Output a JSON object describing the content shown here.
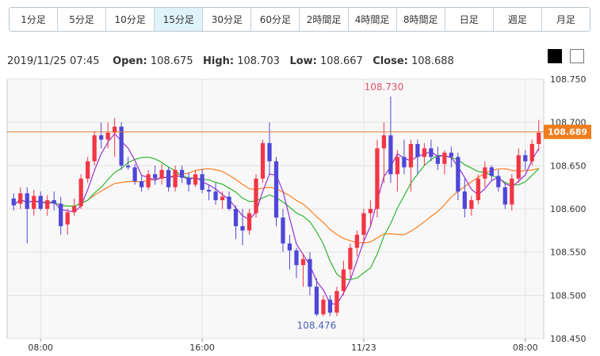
{
  "timeframes": [
    {
      "label": "1分足",
      "active": false
    },
    {
      "label": "5分足",
      "active": false
    },
    {
      "label": "10分足",
      "active": false
    },
    {
      "label": "15分足",
      "active": true
    },
    {
      "label": "30分足",
      "active": false
    },
    {
      "label": "60分足",
      "active": false
    },
    {
      "label": "2時間足",
      "active": false
    },
    {
      "label": "4時間足",
      "active": false
    },
    {
      "label": "8時間足",
      "active": false
    },
    {
      "label": "日足",
      "active": false
    },
    {
      "label": "週足",
      "active": false
    },
    {
      "label": "月足",
      "active": false
    }
  ],
  "ohlc": {
    "datetime": "2019/11/25 07:45",
    "open_label": "Open:",
    "open": "108.675",
    "high_label": "High:",
    "high": "108.703",
    "low_label": "Low:",
    "low": "108.667",
    "close_label": "Close:",
    "close": "108.688"
  },
  "theme_buttons": [
    "black",
    "white"
  ],
  "chart_data": {
    "type": "candlestick",
    "ylim": [
      108.45,
      108.75
    ],
    "y_ticks": [
      108.45,
      108.5,
      108.55,
      108.6,
      108.65,
      108.7,
      108.75
    ],
    "y_tick_labels": [
      "108.450",
      "108.500",
      "108.550",
      "108.600",
      "108.650",
      "108.700",
      "108.750"
    ],
    "x_ticks": [
      {
        "label": "08:00",
        "index": 4
      },
      {
        "label": "16:00",
        "index": 28
      },
      {
        "label": "11/23",
        "index": 52
      },
      {
        "label": "08:00",
        "index": 76
      }
    ],
    "current_price": 108.689,
    "current_price_label": "108.689",
    "annotations": [
      {
        "text": "108.730",
        "value": 108.73,
        "index": 55,
        "position": "above"
      },
      {
        "text": "108.476",
        "value": 108.476,
        "index": 45,
        "position": "below"
      }
    ],
    "colors": {
      "up": "#f23645",
      "down": "#4f47d8",
      "ma_short": "#9a2fd6",
      "ma_mid": "#2eb82e",
      "ma_long": "#ff7d1a",
      "price_line": "#e87b3a",
      "price_tag": "#f07c1c"
    },
    "candles": [
      [
        108.612,
        108.618,
        108.598,
        108.604
      ],
      [
        108.606,
        108.625,
        108.6,
        108.618
      ],
      [
        108.618,
        108.625,
        108.56,
        108.6
      ],
      [
        108.6,
        108.622,
        108.592,
        108.615
      ],
      [
        108.615,
        108.62,
        108.598,
        108.6
      ],
      [
        108.6,
        108.616,
        108.592,
        108.61
      ],
      [
        108.61,
        108.62,
        108.598,
        108.606
      ],
      [
        108.606,
        108.614,
        108.57,
        108.58
      ],
      [
        108.582,
        108.6,
        108.57,
        108.596
      ],
      [
        108.596,
        108.612,
        108.592,
        108.603
      ],
      [
        108.603,
        108.64,
        108.6,
        108.635
      ],
      [
        108.635,
        108.66,
        108.63,
        108.655
      ],
      [
        108.655,
        108.69,
        108.65,
        108.685
      ],
      [
        108.685,
        108.7,
        108.67,
        108.68
      ],
      [
        108.68,
        108.7,
        108.67,
        108.688
      ],
      [
        108.688,
        108.705,
        108.66,
        108.695
      ],
      [
        108.695,
        108.7,
        108.645,
        108.65
      ],
      [
        108.65,
        108.66,
        108.645,
        108.648
      ],
      [
        108.648,
        108.652,
        108.628,
        108.632
      ],
      [
        108.632,
        108.638,
        108.62,
        108.625
      ],
      [
        108.625,
        108.645,
        108.622,
        108.64
      ],
      [
        108.64,
        108.65,
        108.628,
        108.635
      ],
      [
        108.635,
        108.652,
        108.628,
        108.645
      ],
      [
        108.645,
        108.648,
        108.62,
        108.625
      ],
      [
        108.625,
        108.65,
        108.62,
        108.645
      ],
      [
        108.645,
        108.65,
        108.63,
        108.636
      ],
      [
        108.636,
        108.642,
        108.62,
        108.628
      ],
      [
        108.628,
        108.645,
        108.625,
        108.64
      ],
      [
        108.64,
        108.646,
        108.618,
        108.622
      ],
      [
        108.622,
        108.628,
        108.61,
        108.62
      ],
      [
        108.62,
        108.63,
        108.605,
        108.61
      ],
      [
        108.61,
        108.62,
        108.6,
        108.614
      ],
      [
        108.614,
        108.62,
        108.598,
        108.6
      ],
      [
        108.6,
        108.604,
        108.565,
        108.58
      ],
      [
        108.58,
        108.6,
        108.558,
        108.575
      ],
      [
        108.575,
        108.6,
        108.57,
        108.595
      ],
      [
        108.595,
        108.64,
        108.59,
        108.635
      ],
      [
        108.635,
        108.68,
        108.63,
        108.676
      ],
      [
        108.676,
        108.7,
        108.64,
        108.655
      ],
      [
        108.655,
        108.66,
        108.58,
        108.59
      ],
      [
        108.59,
        108.6,
        108.55,
        108.56
      ],
      [
        108.56,
        108.57,
        108.53,
        108.552
      ],
      [
        108.552,
        108.555,
        108.52,
        108.535
      ],
      [
        108.535,
        108.548,
        108.51,
        108.542
      ],
      [
        108.542,
        108.55,
        108.5,
        108.51
      ],
      [
        108.51,
        108.52,
        108.476,
        108.478
      ],
      [
        108.478,
        108.5,
        108.476,
        108.495
      ],
      [
        108.495,
        108.5,
        108.476,
        108.48
      ],
      [
        108.48,
        108.51,
        108.476,
        108.505
      ],
      [
        108.505,
        108.54,
        108.5,
        108.53
      ],
      [
        108.53,
        108.56,
        108.52,
        108.555
      ],
      [
        108.555,
        108.575,
        108.545,
        108.57
      ],
      [
        108.57,
        108.6,
        108.56,
        108.595
      ],
      [
        108.595,
        108.61,
        108.58,
        108.6
      ],
      [
        108.6,
        108.68,
        108.59,
        108.67
      ],
      [
        108.67,
        108.7,
        108.63,
        108.685
      ],
      [
        108.685,
        108.73,
        108.63,
        108.64
      ],
      [
        108.64,
        108.668,
        108.62,
        108.66
      ],
      [
        108.66,
        108.68,
        108.64,
        108.648
      ],
      [
        108.648,
        108.68,
        108.62,
        108.675
      ],
      [
        108.675,
        108.68,
        108.64,
        108.66
      ],
      [
        108.66,
        108.676,
        108.65,
        108.67
      ],
      [
        108.67,
        108.68,
        108.655,
        108.66
      ],
      [
        108.66,
        108.672,
        108.645,
        108.652
      ],
      [
        108.652,
        108.668,
        108.64,
        108.665
      ],
      [
        108.665,
        108.672,
        108.648,
        108.66
      ],
      [
        108.66,
        108.665,
        108.61,
        108.62
      ],
      [
        108.62,
        108.635,
        108.59,
        108.6
      ],
      [
        108.6,
        108.615,
        108.592,
        108.61
      ],
      [
        108.61,
        108.64,
        108.605,
        108.635
      ],
      [
        108.635,
        108.655,
        108.625,
        108.648
      ],
      [
        108.648,
        108.65,
        108.632,
        108.638
      ],
      [
        108.638,
        108.645,
        108.62,
        108.625
      ],
      [
        108.625,
        108.63,
        108.6,
        108.605
      ],
      [
        108.605,
        108.64,
        108.598,
        108.635
      ],
      [
        108.635,
        108.67,
        108.63,
        108.662
      ],
      [
        108.662,
        108.668,
        108.645,
        108.655
      ],
      [
        108.655,
        108.68,
        108.65,
        108.675
      ],
      [
        108.675,
        108.703,
        108.667,
        108.688
      ]
    ]
  }
}
